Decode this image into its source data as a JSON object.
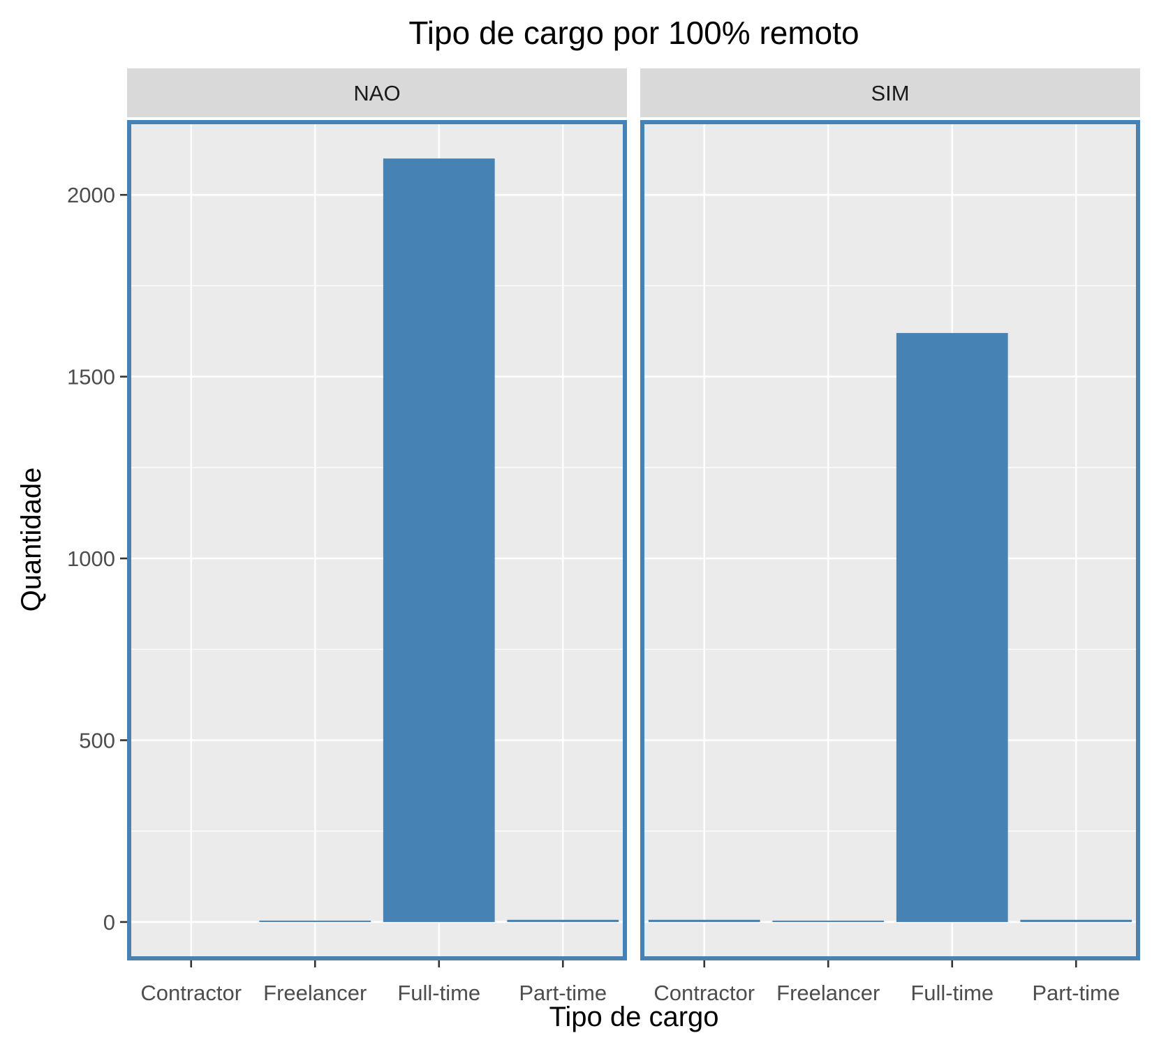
{
  "chart_data": {
    "type": "bar",
    "title": "Tipo de cargo por 100% remoto",
    "xlabel": "Tipo de cargo",
    "ylabel": "Quantidade",
    "ylim": [
      -100,
      2200
    ],
    "yticks": [
      0,
      500,
      1000,
      1500,
      2000
    ],
    "grid": true,
    "categories": [
      "Contractor",
      "Freelancer",
      "Full-time",
      "Part-time"
    ],
    "facets": [
      {
        "label": "NAO",
        "values": [
          0,
          3,
          2100,
          6
        ]
      },
      {
        "label": "SIM",
        "values": [
          6,
          3,
          1620,
          6
        ]
      }
    ],
    "colors": {
      "bar": "#4682b4",
      "panel_background": "#ebebeb",
      "panel_border": "#4682b4",
      "strip_background": "#d9d9d9",
      "grid": "#ffffff"
    }
  }
}
